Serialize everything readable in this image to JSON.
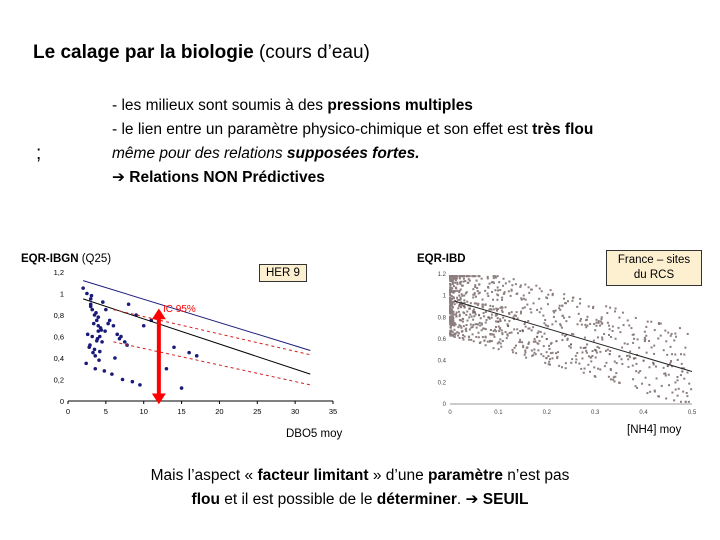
{
  "slide": {
    "title_bold": "Le calage par la biologie",
    "title_rest": " (cours d’eau)",
    "semicolon": ";",
    "bullet1_pre": "- les milieux sont soumis à des ",
    "bullet1_bold": "pressions multiples",
    "bullet2_pre": "- le lien entre un paramètre physico-chimique et son effet est ",
    "bullet2_bold": "très flou",
    "bullet3_pre": "même pour des relations ",
    "bullet3_bold": "supposées fortes.",
    "bullet4_arrow": "➔",
    "bullet4_text": " Relations NON Prédictives",
    "bottom1_pre": "Mais l’aspect « ",
    "bottom1_b1": "facteur limitant",
    "bottom1_mid": " » d’une ",
    "bottom1_b2": "paramètre",
    "bottom1_post": " n’est pas",
    "bottom2_b1": "flou",
    "bottom2_mid": " et il est possible de le ",
    "bottom2_b2": "déterminer",
    "bottom2_post": ". ",
    "bottom2_arrow": "➔",
    "bottom2_b3": " SEUIL"
  },
  "left_chart": {
    "ylabel_main": "EQR-IBGN",
    "ylabel_sub": " (Q25)",
    "xlabel": "DBO5 moy",
    "her_label": "HER 9",
    "ic_label": "IC 95%",
    "ic_color": "#ff0000",
    "xticks": [
      "0",
      "5",
      "10",
      "15",
      "20",
      "25",
      "30",
      "35"
    ],
    "yticks": [
      "1,2",
      "1",
      "0,8",
      "0,6",
      "0,4",
      "0,2",
      "0"
    ]
  },
  "right_chart": {
    "ylabel": "EQR-IBD",
    "xlabel": "[NH4] moy",
    "france_label": "France – sites du RCS",
    "xticks": [
      "0",
      "0.1",
      "0.2",
      "0.3",
      "0.4",
      "0.5"
    ],
    "yticks": [
      "1.2",
      "1",
      "0.8",
      "0.6",
      "0.4",
      "0.2",
      "0"
    ]
  },
  "chart_data": [
    {
      "type": "scatter",
      "title": "",
      "xlabel": "DBO5 moy",
      "ylabel": "EQR-IBGN (Q25)",
      "xlim": [
        0,
        35
      ],
      "ylim": [
        0,
        1.2
      ],
      "series": [
        {
          "x": [
            2,
            2.5,
            3,
            3,
            3.2,
            3.5,
            3.8,
            4,
            4,
            4.2,
            4.5,
            2.8,
            3.3,
            3.6,
            4.1,
            3,
            3.4,
            2.6,
            3.9,
            4.3,
            4.6,
            3.1,
            3.7,
            2.9,
            3.5,
            4,
            4.4,
            3.2,
            3.8,
            4.2,
            5,
            5.5,
            6,
            6.5,
            7,
            7.5,
            8,
            9,
            10,
            11,
            12,
            14,
            16,
            17,
            2.4,
            3.6,
            4.8,
            5.8,
            7.2,
            8.5,
            9.5,
            13,
            15,
            6.2,
            7.8,
            4.9,
            5.3,
            6.8
          ],
          "y": [
            1.05,
            1,
            0.95,
            0.9,
            0.85,
            0.8,
            0.75,
            0.7,
            0.65,
            0.6,
            0.55,
            0.5,
            0.45,
            0.42,
            0.38,
            0.88,
            0.72,
            0.62,
            0.58,
            0.68,
            0.92,
            0.98,
            0.82,
            0.52,
            0.48,
            0.78,
            0.66,
            0.6,
            0.56,
            0.46,
            0.85,
            0.75,
            0.7,
            0.62,
            0.6,
            0.55,
            0.9,
            0.8,
            0.7,
            0.75,
            0.6,
            0.5,
            0.45,
            0.42,
            0.35,
            0.3,
            0.28,
            0.25,
            0.2,
            0.18,
            0.15,
            0.3,
            0.12,
            0.4,
            0.52,
            0.65,
            0.72,
            0.58
          ]
        }
      ],
      "annotations": [
        "HER 9",
        "IC 95%"
      ]
    },
    {
      "type": "scatter",
      "title": "",
      "xlabel": "[NH4] moy",
      "ylabel": "EQR-IBD",
      "xlim": [
        0,
        0.5
      ],
      "ylim": [
        0,
        1.2
      ],
      "series": [
        {
          "x": [
            0.01,
            0.02,
            0.03,
            0.04,
            0.05,
            0.06,
            0.08,
            0.1,
            0.12,
            0.15,
            0.18,
            0.2,
            0.22,
            0.25,
            0.28,
            0.3,
            0.33,
            0.35,
            0.38,
            0.4,
            0.42,
            0.45,
            0.48
          ],
          "y": [
            0.95,
            0.92,
            0.9,
            0.88,
            0.85,
            0.82,
            0.8,
            0.76,
            0.72,
            0.68,
            0.62,
            0.6,
            0.58,
            0.55,
            0.52,
            0.5,
            0.46,
            0.44,
            0.42,
            0.4,
            0.38,
            0.35,
            0.3
          ]
        }
      ],
      "annotations": [
        "France – sites du RCS"
      ]
    }
  ]
}
